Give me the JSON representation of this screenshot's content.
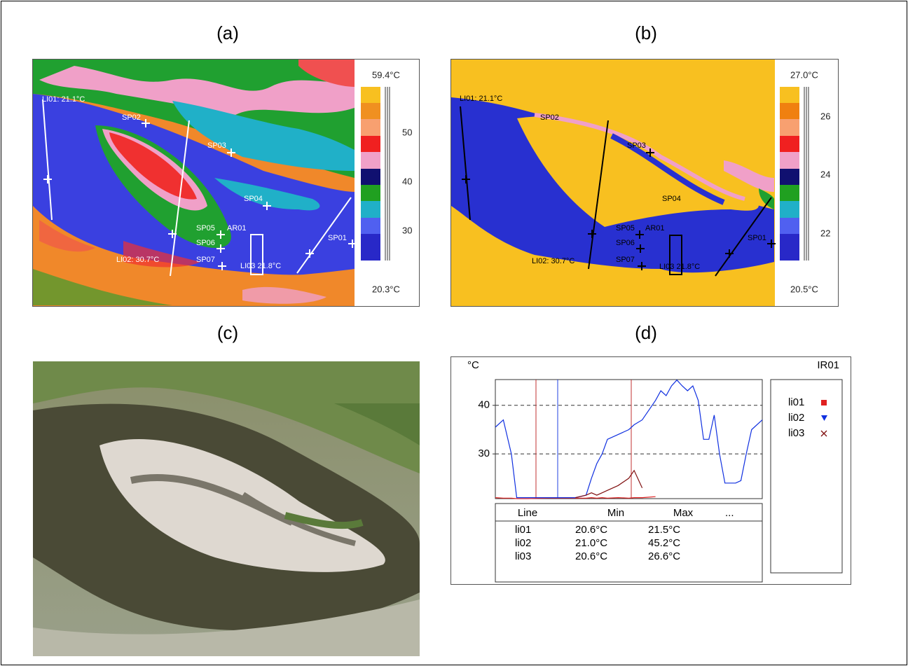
{
  "panels": {
    "a": {
      "label": "(a)",
      "markers": [
        "LI01: 21.1°C",
        "SP02",
        "SP03",
        "SP04",
        "SP05",
        "AR01",
        "SP06",
        "SP07",
        "LI02: 30.7°C",
        "LI03 21.8°C",
        "SP01"
      ],
      "colorbar": {
        "max": "59.4°C",
        "ticks": [
          "50",
          "40",
          "30"
        ],
        "min": "20.3°C"
      }
    },
    "b": {
      "label": "(b)",
      "markers": [
        "LI01: 21.1°C",
        "SP02",
        "SP03",
        "SP04",
        "SP05",
        "AR01",
        "SP06",
        "SP07",
        "LI02: 30.7°C",
        "LI03 21.8°C",
        "SP01"
      ],
      "colorbar": {
        "max": "27.0°C",
        "ticks": [
          "26",
          "24",
          "22"
        ],
        "min": "20.5°C"
      }
    },
    "c": {
      "label": "(c)"
    },
    "d": {
      "label": "(d)"
    }
  },
  "chart_data": {
    "type": "line",
    "title": "IR01",
    "y_label": "°C",
    "x": [
      0,
      3,
      6,
      8,
      12,
      20,
      30,
      34,
      36,
      38,
      40,
      42,
      46,
      50,
      52,
      55,
      60,
      62,
      64,
      66,
      68,
      70,
      72,
      74,
      76,
      78,
      80,
      82,
      84,
      86,
      90,
      92,
      94,
      96,
      100
    ],
    "xlim": [
      0,
      100
    ],
    "ylim": [
      20.8,
      45.3
    ],
    "yticks": [
      30,
      40
    ],
    "grid": true,
    "legend": "right",
    "series": [
      {
        "name": "li01",
        "color": "#e02020",
        "values": [
          21,
          20.9,
          20.9,
          20.8,
          20.8,
          20.9,
          20.9,
          20.9,
          21,
          20.9,
          21,
          20.9,
          21,
          20.9,
          21,
          21,
          21.2,
          null,
          null,
          null,
          null,
          null,
          null,
          null,
          null,
          null,
          null,
          null,
          null,
          null,
          null,
          null,
          null,
          null,
          null
        ]
      },
      {
        "name": "li02",
        "color": "#1030e0",
        "values": [
          35.5,
          37,
          30,
          21,
          21,
          21,
          21,
          21.5,
          25,
          28,
          30,
          33,
          34,
          35,
          36,
          37,
          41,
          43,
          42,
          44,
          45.2,
          44,
          43,
          44,
          41,
          33,
          33,
          38,
          30,
          24,
          24,
          24.5,
          30,
          35,
          37
        ]
      },
      {
        "name": "li03",
        "color": "#801010",
        "values": [
          null,
          null,
          null,
          null,
          null,
          null,
          21,
          21.5,
          22,
          21.5,
          22,
          22.5,
          23.5,
          25,
          26.6,
          23,
          null,
          null,
          null,
          null,
          null,
          null,
          null,
          null,
          null,
          null,
          null,
          null,
          null,
          null,
          null,
          null,
          null,
          null,
          null
        ]
      }
    ],
    "table": {
      "header": [
        "Line",
        "Min",
        "Max",
        "..."
      ],
      "rows": [
        [
          "li01",
          "20.6°C",
          "21.5°C"
        ],
        [
          "li02",
          "21.0°C",
          "45.2°C"
        ],
        [
          "li03",
          "20.6°C",
          "26.6°C"
        ]
      ]
    }
  }
}
